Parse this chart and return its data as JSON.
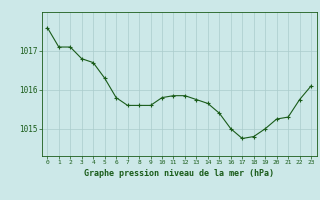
{
  "x": [
    0,
    1,
    2,
    3,
    4,
    5,
    6,
    7,
    8,
    9,
    10,
    11,
    12,
    13,
    14,
    15,
    16,
    17,
    18,
    19,
    20,
    21,
    22,
    23
  ],
  "y": [
    1017.6,
    1017.1,
    1017.1,
    1016.8,
    1016.7,
    1016.3,
    1015.8,
    1015.6,
    1015.6,
    1015.6,
    1015.8,
    1015.85,
    1015.85,
    1015.75,
    1015.65,
    1015.4,
    1015.0,
    1014.75,
    1014.8,
    1015.0,
    1015.25,
    1015.3,
    1015.75,
    1016.1
  ],
  "line_color": "#1a5c1a",
  "marker_color": "#1a5c1a",
  "bg_color": "#cce8e8",
  "grid_color": "#aacccc",
  "axis_color": "#1a5c1a",
  "label_color": "#1a5c1a",
  "xlabel": "Graphe pression niveau de la mer (hPa)",
  "yticks": [
    1015,
    1016,
    1017
  ],
  "ylim": [
    1014.3,
    1018.0
  ],
  "xlim": [
    -0.5,
    23.5
  ]
}
